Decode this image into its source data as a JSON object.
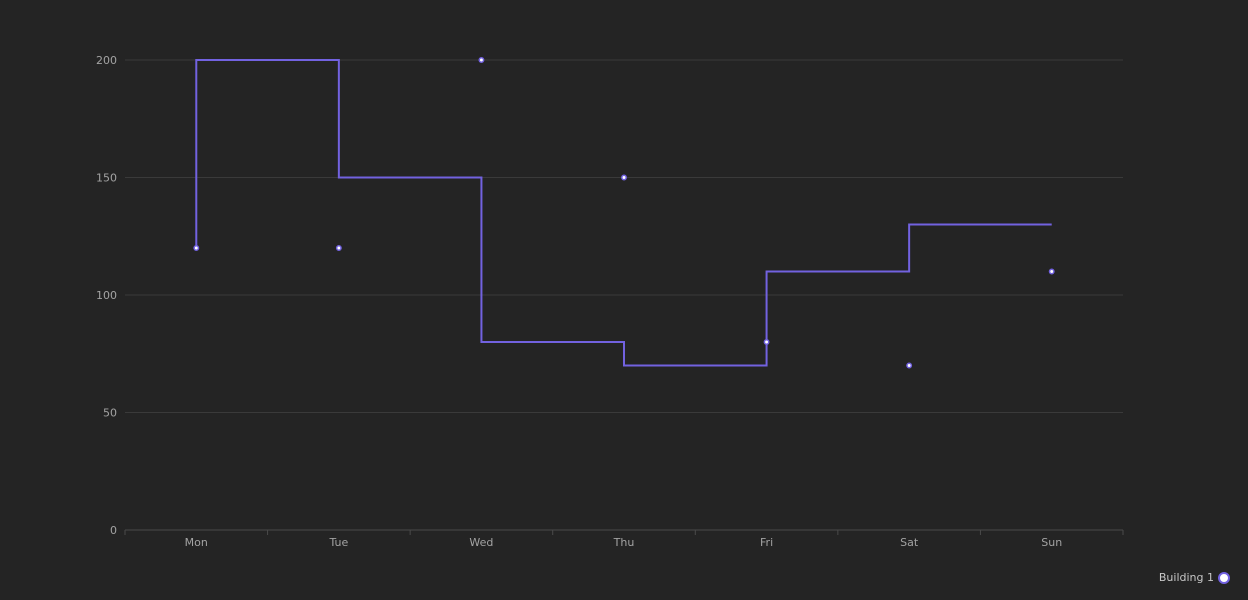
{
  "chart_data": {
    "type": "line",
    "step": "start",
    "categories": [
      "Mon",
      "Tue",
      "Wed",
      "Thu",
      "Fri",
      "Sat",
      "Sun"
    ],
    "series": [
      {
        "name": "Building 1",
        "values": [
          120,
          200,
          150,
          80,
          70,
          110,
          130
        ]
      }
    ],
    "y_ticks": [
      0,
      50,
      100,
      150,
      200
    ],
    "ylim": [
      0,
      200
    ],
    "grid": true,
    "legend_position": "bottom-right",
    "title": "",
    "xlabel": "",
    "ylabel": ""
  },
  "colors": {
    "background": "#242424",
    "series": "#7262e0",
    "grid": "#3a3a3a",
    "axis": "#4a4a4a",
    "tick_text": "#a3a3a3",
    "legend_text": "#c7c7c7"
  }
}
